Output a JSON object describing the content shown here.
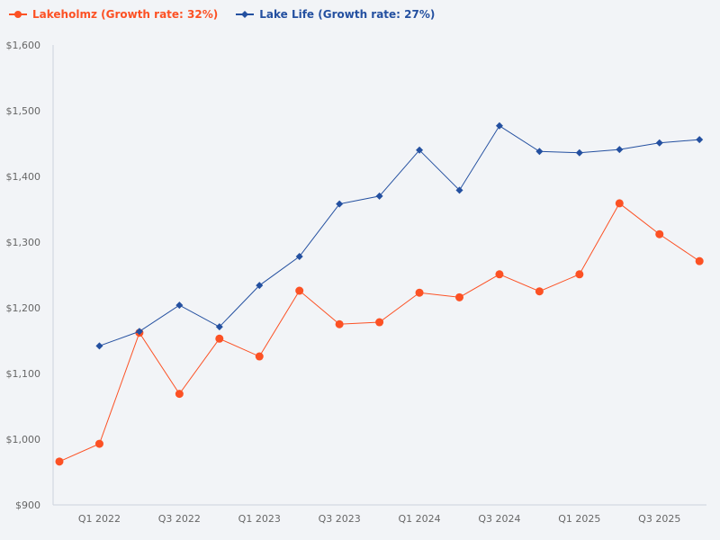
{
  "chart_data": {
    "type": "line",
    "title": "",
    "xlabel": "",
    "ylabel": "",
    "ylim": [
      900,
      1600
    ],
    "y_ticks": [
      "$900",
      "$1,000",
      "$1,100",
      "$1,200",
      "$1,300",
      "$1,400",
      "$1,500",
      "$1,600"
    ],
    "y_tick_values": [
      900,
      1000,
      1100,
      1200,
      1300,
      1400,
      1500,
      1600
    ],
    "x": [
      "Q4 2021",
      "Q1 2022",
      "Q2 2022",
      "Q3 2022",
      "Q4 2022",
      "Q1 2023",
      "Q2 2023",
      "Q3 2023",
      "Q4 2023",
      "Q1 2024",
      "Q2 2024",
      "Q3 2024",
      "Q4 2024",
      "Q1 2025",
      "Q2 2025",
      "Q3 2025",
      "Q4 2025"
    ],
    "x_tick_labels": [
      "Q1 2022",
      "Q3 2022",
      "Q1 2023",
      "Q3 2023",
      "Q1 2024",
      "Q3 2024",
      "Q1 2025",
      "Q3 2025"
    ],
    "grid": false,
    "legend_position": "top-left",
    "series": [
      {
        "name": "Lakeholmz (Growth rate: 32%)",
        "color": "#fc5124",
        "marker": "circle",
        "values": [
          966,
          993,
          1162,
          1069,
          1153,
          1126,
          1226,
          1175,
          1178,
          1223,
          1216,
          1251,
          1225,
          1251,
          1359,
          1312,
          1271
        ]
      },
      {
        "name": "Lake Life (Growth rate: 27%)",
        "color": "#2450a0",
        "marker": "diamond",
        "values": [
          null,
          1142,
          1164,
          1204,
          1171,
          1234,
          1278,
          1358,
          1370,
          1440,
          1379,
          1477,
          1438,
          1436,
          1441,
          1451,
          1456
        ]
      }
    ]
  }
}
